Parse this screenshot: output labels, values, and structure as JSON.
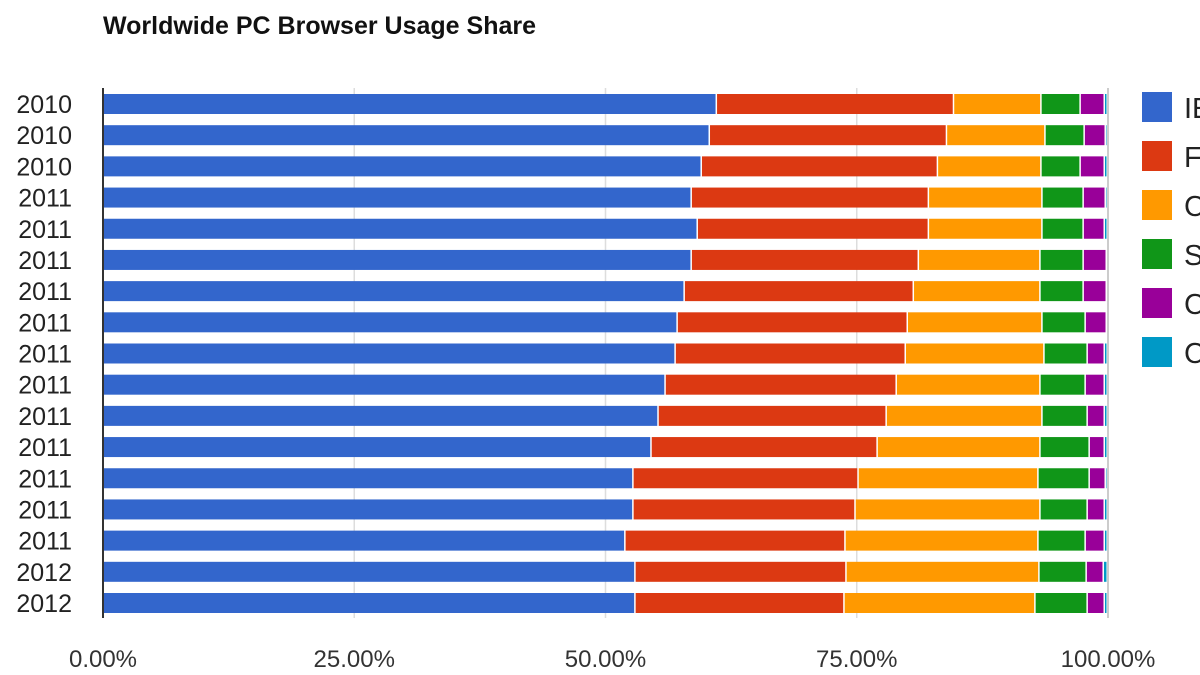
{
  "chart_data": {
    "type": "bar",
    "orientation": "horizontal",
    "stacked": true,
    "title": "Worldwide PC Browser Usage Share",
    "xlim": [
      0,
      100
    ],
    "x_ticks": [
      "0.00%",
      "25.00%",
      "50.00%",
      "75.00%",
      "100.00%"
    ],
    "grid": true,
    "legend_position": "right",
    "categories": [
      "2010",
      "2010",
      "2010",
      "2011",
      "2011",
      "2011",
      "2011",
      "2011",
      "2011",
      "2011",
      "2011",
      "2011",
      "2011",
      "2011",
      "2011",
      "2012",
      "2012"
    ],
    "series": [
      {
        "name": "IE",
        "color": "#3366cc",
        "values": [
          61.1,
          60.4,
          59.6,
          58.6,
          59.2,
          58.6,
          57.9,
          57.2,
          57.0,
          56.0,
          55.3,
          54.6,
          52.8,
          52.8,
          52.0,
          53.0,
          53.0
        ]
      },
      {
        "name": "F",
        "color": "#dc3912",
        "values": [
          23.6,
          23.6,
          23.5,
          23.6,
          23.0,
          22.6,
          22.8,
          22.9,
          22.9,
          23.0,
          22.7,
          22.5,
          22.4,
          22.1,
          21.9,
          21.0,
          20.8
        ]
      },
      {
        "name": "C",
        "color": "#ff9900",
        "values": [
          8.7,
          9.8,
          10.3,
          11.3,
          11.3,
          12.1,
          12.6,
          13.4,
          13.8,
          14.3,
          15.5,
          16.2,
          17.9,
          18.4,
          19.2,
          19.2,
          19.0
        ]
      },
      {
        "name": "S",
        "color": "#109618",
        "values": [
          3.9,
          3.9,
          3.9,
          4.1,
          4.1,
          4.3,
          4.3,
          4.3,
          4.3,
          4.5,
          4.5,
          4.9,
          5.1,
          4.7,
          4.7,
          4.7,
          5.2
        ]
      },
      {
        "name": "C",
        "color": "#990099",
        "values": [
          2.4,
          2.1,
          2.4,
          2.2,
          2.1,
          2.3,
          2.3,
          2.1,
          1.7,
          1.9,
          1.7,
          1.5,
          1.6,
          1.7,
          1.9,
          1.7,
          1.7
        ]
      },
      {
        "name": "C",
        "color": "#0099c6",
        "values": [
          0.3,
          0.2,
          0.3,
          0.2,
          0.3,
          0.1,
          0.1,
          0.1,
          0.3,
          0.3,
          0.3,
          0.3,
          0.2,
          0.3,
          0.3,
          0.4,
          0.3
        ]
      }
    ]
  }
}
